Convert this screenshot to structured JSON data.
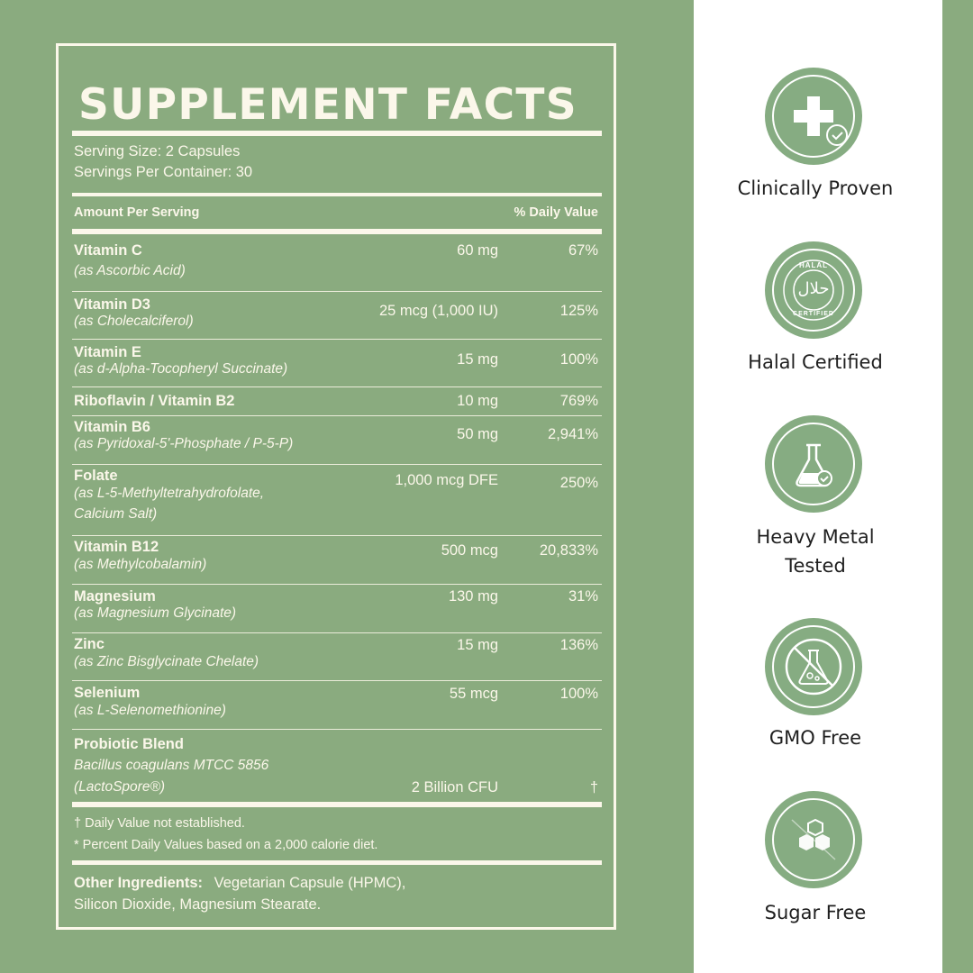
{
  "title": "SUPPLEMENT FACTS",
  "serving_size": "Serving Size:  2 Capsules",
  "servings_per_container": "Servings Per Container:  30",
  "header": {
    "amount": "Amount Per Serving",
    "daily_value": "% Daily Value"
  },
  "nutrients": [
    {
      "name": "Vitamin C",
      "source": "(as Ascorbic Acid)",
      "amount": "60 mg",
      "dv": "67%"
    },
    {
      "name": "Vitamin D3",
      "source": "(as Cholecalciferol)",
      "amount": "25 mcg (1,000 IU)",
      "dv": "125%"
    },
    {
      "name": "Vitamin E",
      "source": "(as d-Alpha-Tocopheryl Succinate)",
      "amount": "15 mg",
      "dv": "100%"
    },
    {
      "name": "Riboflavin / Vitamin B2",
      "source": "",
      "amount": "10 mg",
      "dv": "769%"
    },
    {
      "name": "Vitamin B6",
      "source": "(as Pyridoxal-5'-Phosphate / P-5-P)",
      "amount": "50 mg",
      "dv": "2,941%"
    },
    {
      "name": "Folate",
      "source": "(as L-5-Methyltetrahydrofolate,",
      "source2": "Calcium Salt)",
      "amount": "1,000 mcg DFE",
      "dv": "250%"
    },
    {
      "name": "Vitamin B12",
      "source": "(as Methylcobalamin)",
      "amount": "500 mcg",
      "dv": "20,833%"
    },
    {
      "name": "Magnesium",
      "source": "(as Magnesium Glycinate)",
      "amount": "130 mg",
      "dv": "31%"
    },
    {
      "name": "Zinc",
      "source": "(as Zinc Bisglycinate Chelate)",
      "amount": "15 mg",
      "dv": "136%"
    },
    {
      "name": "Selenium",
      "source": "(as L-Selenomethionine)",
      "amount": "55 mcg",
      "dv": "100%"
    },
    {
      "name": "Probiotic Blend",
      "source": "Bacillus coagulans MTCC 5856",
      "source2": "(LactoSpore®)",
      "amount": "2 Billion CFU",
      "dv": "†"
    }
  ],
  "footnotes": {
    "dagger": "† Daily Value not established.",
    "percent": "* Percent Daily Values based on a 2,000 calorie diet."
  },
  "other_ingredients": {
    "label": "Other Ingredients:",
    "line1": "Vegetarian Capsule (HPMC),",
    "line2": "Silicon Dioxide, Magnesium Stearate."
  },
  "badges": {
    "clinically_proven": {
      "label": "Clinically Proven",
      "icon": "medical-cross-check-icon"
    },
    "halal": {
      "label": "Halal Certified",
      "icon": "halal-certified-icon",
      "ring_top": "HALAL",
      "ring_bottom": "CERTIFIED",
      "arabic": "حلال"
    },
    "heavy_metal": {
      "label1": "Heavy Metal",
      "label2": "Tested",
      "icon": "flask-check-icon"
    },
    "gmo": {
      "label": "GMO Free",
      "icon": "no-gmo-flask-icon"
    },
    "sugar": {
      "label": "Sugar Free",
      "icon": "no-sugar-cubes-icon"
    }
  },
  "colors": {
    "panel_green": "#8aab7f",
    "cream": "#fbf7ea",
    "badge_green": "#86ac82",
    "label_text": "#1f1f1f"
  }
}
